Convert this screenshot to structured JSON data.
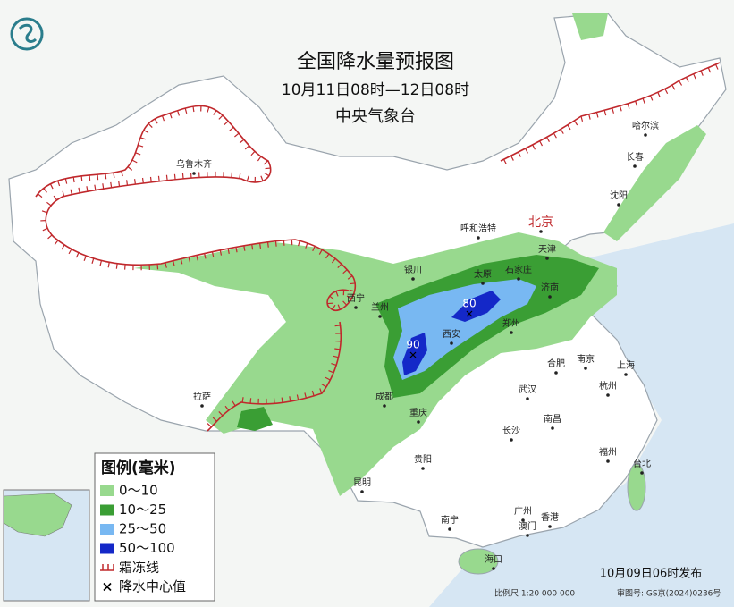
{
  "header": {
    "title": "全国降水量预报图",
    "period": "10月11日08时—12日08时",
    "agency": "中央气象台"
  },
  "legend": {
    "title": "图例(毫米)",
    "items": [
      {
        "label": "0～10",
        "color": "#98d98e"
      },
      {
        "label": "10～25",
        "color": "#3a9e34"
      },
      {
        "label": "25～50",
        "color": "#78b8f2"
      },
      {
        "label": "50～100",
        "color": "#1428c8"
      },
      {
        "label": "霜冻线",
        "color": "#c0282c"
      },
      {
        "label": "降水中心值",
        "color": "#000000"
      }
    ]
  },
  "centers": [
    {
      "value": 80
    },
    {
      "value": 90
    }
  ],
  "cities": [
    "北京",
    "天津",
    "石家庄",
    "太原",
    "济南",
    "呼和浩特",
    "银川",
    "兰州",
    "西宁",
    "西安",
    "郑州",
    "成都",
    "重庆",
    "武汉",
    "合肥",
    "南京",
    "上海",
    "杭州",
    "长沙",
    "南昌",
    "福州",
    "台北",
    "贵阳",
    "昆明",
    "南宁",
    "广州",
    "澳门",
    "香港",
    "海口",
    "拉萨",
    "乌鲁木齐",
    "哈尔滨",
    "长春",
    "沈阳"
  ],
  "footer": {
    "issued": "10月09日06时发布",
    "scale": "比例尺 1:20 000 000",
    "approval": "审图号: GS京(2024)0236号"
  }
}
